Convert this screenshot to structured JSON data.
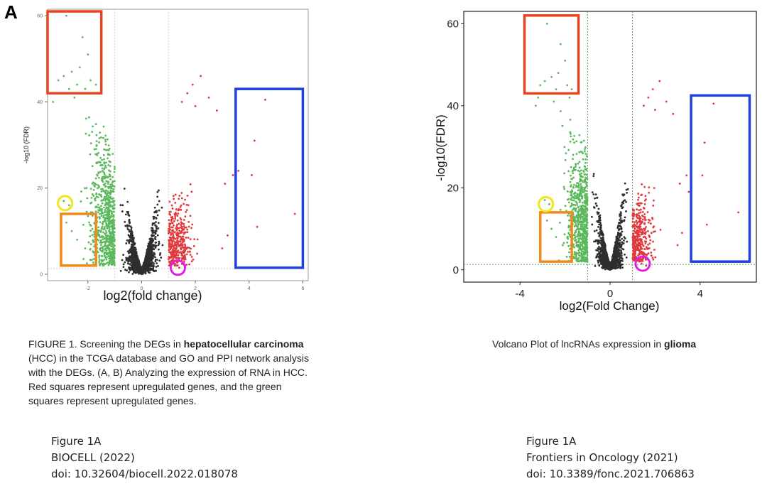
{
  "panel_label": "A",
  "captions": {
    "left": {
      "parts": [
        {
          "text": "FIGURE 1. Screening the DEGs in ",
          "bold": false
        },
        {
          "text": "hepatocellular carcinoma",
          "bold": true
        },
        {
          "text": " (HCC) in the TCGA database and GO and PPI network analysis with the DEGs. (A, B) Analyzing the expression of RNA in HCC. Red squares represent upregulated genes, and the green squares represent upregulated genes.",
          "bold": false
        }
      ]
    },
    "right": {
      "parts": [
        {
          "text": "Volcano Plot of lncRNAs expression in ",
          "bold": false
        },
        {
          "text": "glioma",
          "bold": true
        }
      ]
    }
  },
  "citations": {
    "left": {
      "line1": "Figure 1A",
      "line2": "BIOCELL (2022)",
      "line3": "doi: 10.32604/biocell.2022.018078"
    },
    "right": {
      "line1": "Figure 1A",
      "line2": "Frontiers in Oncology (2021)",
      "line3": "doi: 10.3389/fonc.2021.706863"
    }
  },
  "chart_data": [
    {
      "type": "scatter",
      "title": "",
      "xlabel": "log2(fold change)",
      "ylabel": "-log10 (FDR)",
      "xlim": [
        -3.5,
        6.2
      ],
      "ylim": [
        -1.5,
        61.5
      ],
      "xticks": [
        -2,
        0,
        2,
        4,
        6
      ],
      "yticks": [
        0,
        20,
        40,
        60
      ],
      "fold_thresholds": [
        -1,
        1
      ],
      "fdr_threshold": 1.3,
      "grid": false,
      "legend": "none",
      "series": [
        {
          "color": "#2e2e2e",
          "clusters": [
            {
              "x": [
                -1.0,
                1.0
              ],
              "y_max_at_edge": 37,
              "count": 1500
            }
          ]
        },
        {
          "color": "#5cb85c",
          "points": [
            [
              -2.8,
              60
            ],
            [
              -2.2,
              55
            ],
            [
              -2.0,
              51
            ],
            [
              -2.3,
              48
            ],
            [
              -2.6,
              47
            ],
            [
              -2.9,
              46
            ],
            [
              -3.1,
              45
            ],
            [
              -1.9,
              45
            ],
            [
              -2.4,
              44
            ],
            [
              -1.7,
              44
            ],
            [
              -2.1,
              43
            ],
            [
              -2.7,
              43
            ],
            [
              -3.2,
              42
            ],
            [
              -1.8,
              42
            ],
            [
              -2.5,
              41
            ],
            [
              -3.3,
              40
            ],
            [
              -2.9,
              17
            ],
            [
              -2.7,
              16
            ],
            [
              -2.8,
              12
            ],
            [
              -2.6,
              10
            ],
            [
              -2.4,
              8
            ],
            [
              -2.1,
              6
            ]
          ]
        },
        {
          "color": "#e03a3e",
          "points": [
            [
              1.9,
              44
            ],
            [
              2.2,
              46
            ],
            [
              1.7,
              42
            ],
            [
              2.5,
              41
            ],
            [
              1.5,
              40
            ],
            [
              2.0,
              39
            ],
            [
              2.8,
              38
            ],
            [
              4.6,
              40.5
            ],
            [
              4.2,
              31
            ],
            [
              3.6,
              24
            ],
            [
              3.4,
              23
            ],
            [
              4.1,
              23
            ],
            [
              3.1,
              21
            ],
            [
              3.5,
              19
            ],
            [
              5.7,
              14
            ],
            [
              4.3,
              11
            ],
            [
              3.2,
              9
            ],
            [
              3.0,
              6
            ],
            [
              1.4,
              1.5
            ],
            [
              1.6,
              1.0
            ],
            [
              1.3,
              2.0
            ]
          ]
        }
      ],
      "annotations": [
        {
          "shape": "rect",
          "color": "#e8441f",
          "x": [
            -3.5,
            -1.5
          ],
          "y": [
            42,
            61
          ]
        },
        {
          "shape": "rect",
          "color": "#1f3fe0",
          "x": [
            3.5,
            6.0
          ],
          "y": [
            1.5,
            43
          ]
        },
        {
          "shape": "rect",
          "color": "#f08a1c",
          "x": [
            -3.0,
            -1.7
          ],
          "y": [
            2,
            14
          ]
        },
        {
          "shape": "circle",
          "color": "#f2e51f",
          "x": -2.85,
          "y": 16.5
        },
        {
          "shape": "circle",
          "color": "#e020e0",
          "x": 1.35,
          "y": 1.5
        }
      ]
    },
    {
      "type": "scatter",
      "title": "",
      "xlabel": "log2(Fold Change)",
      "ylabel": "-log10(FDR)",
      "xlim": [
        -6.5,
        6.5
      ],
      "ylim": [
        -3,
        63
      ],
      "xticks": [
        -4,
        0,
        4
      ],
      "yticks": [
        0,
        20,
        40,
        60
      ],
      "fold_thresholds": [
        -1,
        1
      ],
      "fdr_threshold": 1.3,
      "grid": false,
      "legend": "none",
      "series": [
        {
          "color": "#2e2e2e",
          "clusters": [
            {
              "x": [
                -1.0,
                1.0
              ],
              "y_max_at_edge": 37,
              "count": 1500
            }
          ]
        },
        {
          "color": "#5cb85c",
          "points": [
            [
              -2.8,
              60
            ],
            [
              -2.2,
              55
            ],
            [
              -2.0,
              51
            ],
            [
              -2.3,
              48
            ],
            [
              -2.6,
              47
            ],
            [
              -2.9,
              46
            ],
            [
              -3.1,
              45
            ],
            [
              -1.9,
              45
            ],
            [
              -2.4,
              44
            ],
            [
              -1.7,
              44
            ],
            [
              -2.1,
              43
            ],
            [
              -2.7,
              43
            ],
            [
              -3.2,
              42
            ],
            [
              -1.8,
              42
            ],
            [
              -2.5,
              41
            ],
            [
              -3.3,
              40
            ],
            [
              -2.9,
              17
            ],
            [
              -2.7,
              16
            ],
            [
              -2.8,
              12
            ],
            [
              -2.6,
              10
            ],
            [
              -2.4,
              8
            ],
            [
              -2.1,
              6
            ]
          ]
        },
        {
          "color": "#e03a3e",
          "points": [
            [
              1.9,
              44
            ],
            [
              2.2,
              46
            ],
            [
              1.7,
              42
            ],
            [
              2.5,
              41
            ],
            [
              1.5,
              40
            ],
            [
              2.0,
              39
            ],
            [
              2.8,
              38
            ],
            [
              4.6,
              40.5
            ],
            [
              4.2,
              31
            ],
            [
              3.6,
              24
            ],
            [
              3.4,
              23
            ],
            [
              4.1,
              23
            ],
            [
              3.1,
              21
            ],
            [
              3.5,
              19
            ],
            [
              5.7,
              14
            ],
            [
              4.3,
              11
            ],
            [
              3.2,
              9
            ],
            [
              3.0,
              6
            ],
            [
              1.4,
              1.5
            ],
            [
              1.6,
              1.0
            ],
            [
              1.3,
              2.0
            ]
          ]
        }
      ],
      "annotations": [
        {
          "shape": "rect",
          "color": "#e8441f",
          "x": [
            -3.8,
            -1.4
          ],
          "y": [
            43,
            62
          ]
        },
        {
          "shape": "rect",
          "color": "#1f3fe0",
          "x": [
            3.6,
            6.2
          ],
          "y": [
            2,
            42.5
          ]
        },
        {
          "shape": "rect",
          "color": "#f08a1c",
          "x": [
            -3.1,
            -1.7
          ],
          "y": [
            2,
            14
          ]
        },
        {
          "shape": "circle",
          "color": "#f2e51f",
          "x": -2.85,
          "y": 16
        },
        {
          "shape": "circle",
          "color": "#e020e0",
          "x": 1.45,
          "y": 1.5
        }
      ]
    }
  ]
}
